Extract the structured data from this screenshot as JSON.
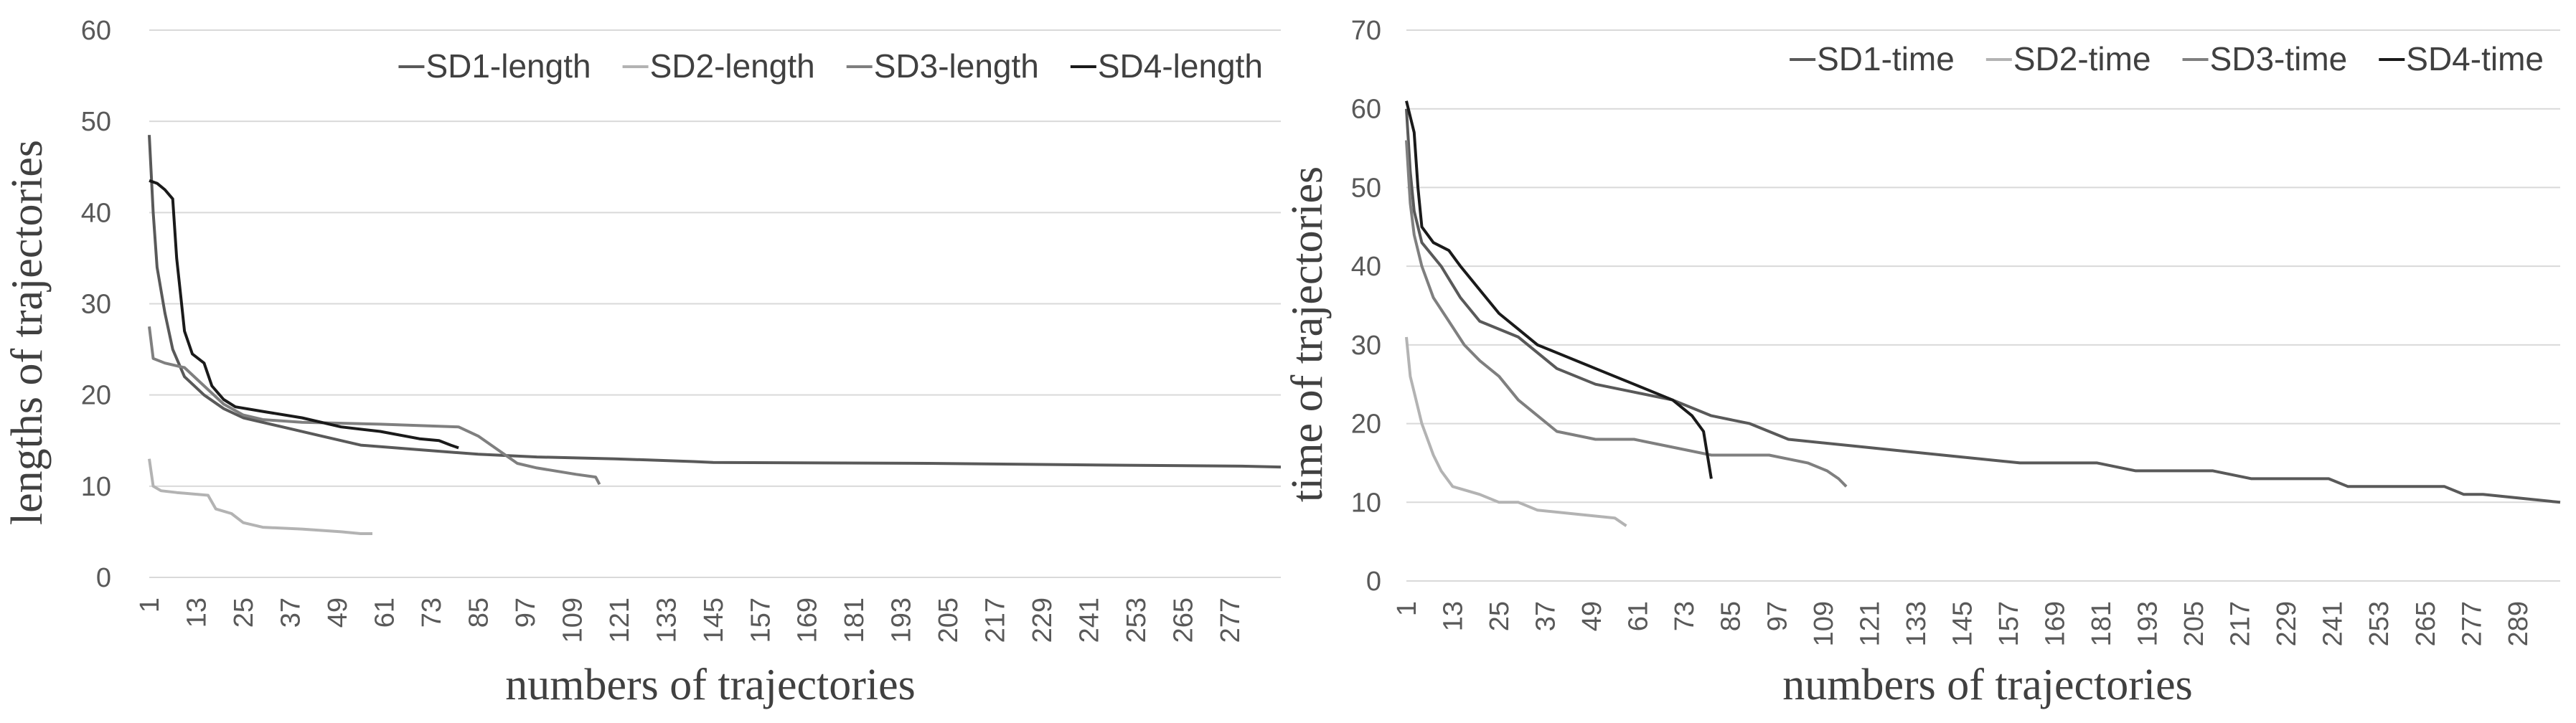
{
  "chart_data": [
    {
      "type": "line",
      "ylabel": "lengths of trajectories",
      "xlabel": "numbers of trajectories",
      "ylim": [
        0,
        60
      ],
      "yticks": [
        0,
        10,
        20,
        30,
        40,
        50,
        60
      ],
      "x_max": 290,
      "x_ticks": [
        1,
        13,
        25,
        37,
        49,
        61,
        73,
        85,
        97,
        109,
        121,
        133,
        145,
        157,
        169,
        181,
        193,
        205,
        217,
        229,
        241,
        253,
        265,
        277
      ],
      "legend_position": "top-right",
      "series": [
        {
          "name": "SD1-length",
          "color": "#595959",
          "points": [
            [
              1,
              48.5
            ],
            [
              2,
              40
            ],
            [
              3,
              34
            ],
            [
              5,
              29
            ],
            [
              7,
              25
            ],
            [
              10,
              22
            ],
            [
              15,
              20
            ],
            [
              20,
              18.5
            ],
            [
              25,
              17.5
            ],
            [
              35,
              16.5
            ],
            [
              45,
              15.5
            ],
            [
              55,
              14.5
            ],
            [
              70,
              14
            ],
            [
              85,
              13.5
            ],
            [
              100,
              13.2
            ],
            [
              120,
              13
            ],
            [
              140,
              12.7
            ],
            [
              145,
              12.6
            ],
            [
              200,
              12.5
            ],
            [
              250,
              12.3
            ],
            [
              280,
              12.2
            ],
            [
              290,
              12.1
            ]
          ]
        },
        {
          "name": "SD2-length",
          "color": "#b3b3b3",
          "points": [
            [
              1,
              13
            ],
            [
              2,
              10
            ],
            [
              4,
              9.5
            ],
            [
              8,
              9.3
            ],
            [
              16,
              9
            ],
            [
              18,
              7.5
            ],
            [
              22,
              7
            ],
            [
              25,
              6
            ],
            [
              30,
              5.5
            ],
            [
              40,
              5.3
            ],
            [
              50,
              5
            ],
            [
              55,
              4.8
            ],
            [
              58,
              4.8
            ]
          ]
        },
        {
          "name": "SD3-length",
          "color": "#7f7f7f",
          "points": [
            [
              1,
              27.5
            ],
            [
              2,
              24
            ],
            [
              5,
              23.5
            ],
            [
              10,
              23
            ],
            [
              15,
              21
            ],
            [
              20,
              19
            ],
            [
              25,
              17.8
            ],
            [
              30,
              17.3
            ],
            [
              40,
              17
            ],
            [
              60,
              16.8
            ],
            [
              80,
              16.5
            ],
            [
              85,
              15.5
            ],
            [
              90,
              14
            ],
            [
              95,
              12.5
            ],
            [
              100,
              12
            ],
            [
              110,
              11.3
            ],
            [
              115,
              11
            ],
            [
              116,
              10.2
            ]
          ]
        },
        {
          "name": "SD4-length",
          "color": "#1a1a1a",
          "points": [
            [
              1,
              43.5
            ],
            [
              3,
              43.2
            ],
            [
              5,
              42.5
            ],
            [
              7,
              41.5
            ],
            [
              8,
              35
            ],
            [
              9,
              31
            ],
            [
              10,
              27
            ],
            [
              12,
              24.5
            ],
            [
              15,
              23.5
            ],
            [
              17,
              21
            ],
            [
              20,
              19.5
            ],
            [
              23,
              18.7
            ],
            [
              30,
              18.2
            ],
            [
              40,
              17.5
            ],
            [
              50,
              16.5
            ],
            [
              60,
              16
            ],
            [
              70,
              15.2
            ],
            [
              75,
              15
            ],
            [
              78,
              14.5
            ],
            [
              80,
              14.2
            ]
          ]
        }
      ]
    },
    {
      "type": "line",
      "ylabel": "time of trajectories",
      "xlabel": "numbers of trajectories",
      "ylim": [
        0,
        70
      ],
      "yticks": [
        0,
        10,
        20,
        30,
        40,
        50,
        60,
        70
      ],
      "x_max": 300,
      "x_ticks": [
        1,
        13,
        25,
        37,
        49,
        61,
        73,
        85,
        97,
        109,
        121,
        133,
        145,
        157,
        169,
        181,
        193,
        205,
        217,
        229,
        241,
        253,
        265,
        277,
        289
      ],
      "legend_position": "top-right",
      "series": [
        {
          "name": "SD1-time",
          "color": "#595959",
          "points": [
            [
              1,
              60
            ],
            [
              2,
              52
            ],
            [
              3,
              47
            ],
            [
              5,
              43
            ],
            [
              10,
              40
            ],
            [
              15,
              36
            ],
            [
              20,
              33
            ],
            [
              30,
              31
            ],
            [
              40,
              27
            ],
            [
              50,
              25
            ],
            [
              60,
              24
            ],
            [
              70,
              23
            ],
            [
              80,
              21
            ],
            [
              90,
              20
            ],
            [
              100,
              18
            ],
            [
              120,
              17
            ],
            [
              140,
              16
            ],
            [
              160,
              15
            ],
            [
              180,
              15
            ],
            [
              190,
              14
            ],
            [
              210,
              14
            ],
            [
              220,
              13
            ],
            [
              240,
              13
            ],
            [
              245,
              12
            ],
            [
              270,
              12
            ],
            [
              275,
              11
            ],
            [
              280,
              11
            ],
            [
              290,
              10.5
            ],
            [
              300,
              10
            ]
          ]
        },
        {
          "name": "SD2-time",
          "color": "#b3b3b3",
          "points": [
            [
              1,
              31
            ],
            [
              2,
              26
            ],
            [
              3,
              24
            ],
            [
              5,
              20
            ],
            [
              8,
              16
            ],
            [
              10,
              14
            ],
            [
              13,
              12
            ],
            [
              20,
              11
            ],
            [
              25,
              10
            ],
            [
              30,
              10
            ],
            [
              35,
              9
            ],
            [
              45,
              8.5
            ],
            [
              55,
              8
            ],
            [
              58,
              7
            ]
          ]
        },
        {
          "name": "SD3-time",
          "color": "#7f7f7f",
          "points": [
            [
              1,
              56
            ],
            [
              2,
              48
            ],
            [
              3,
              44
            ],
            [
              5,
              40
            ],
            [
              8,
              36
            ],
            [
              12,
              33
            ],
            [
              16,
              30
            ],
            [
              20,
              28
            ],
            [
              25,
              26
            ],
            [
              30,
              23
            ],
            [
              35,
              21
            ],
            [
              40,
              19
            ],
            [
              50,
              18
            ],
            [
              60,
              18
            ],
            [
              70,
              17
            ],
            [
              80,
              16
            ],
            [
              95,
              16
            ],
            [
              105,
              15
            ],
            [
              110,
              14
            ],
            [
              113,
              13
            ],
            [
              115,
              12
            ]
          ]
        },
        {
          "name": "SD4-time",
          "color": "#1a1a1a",
          "points": [
            [
              1,
              61
            ],
            [
              2,
              59
            ],
            [
              3,
              57
            ],
            [
              4,
              50
            ],
            [
              5,
              45
            ],
            [
              8,
              43
            ],
            [
              12,
              42
            ],
            [
              15,
              40
            ],
            [
              20,
              37
            ],
            [
              25,
              34
            ],
            [
              30,
              32
            ],
            [
              35,
              30
            ],
            [
              40,
              29
            ],
            [
              50,
              27
            ],
            [
              60,
              25
            ],
            [
              65,
              24
            ],
            [
              70,
              23
            ],
            [
              75,
              21
            ],
            [
              78,
              19
            ],
            [
              79,
              16
            ],
            [
              80,
              13
            ]
          ]
        }
      ]
    }
  ]
}
